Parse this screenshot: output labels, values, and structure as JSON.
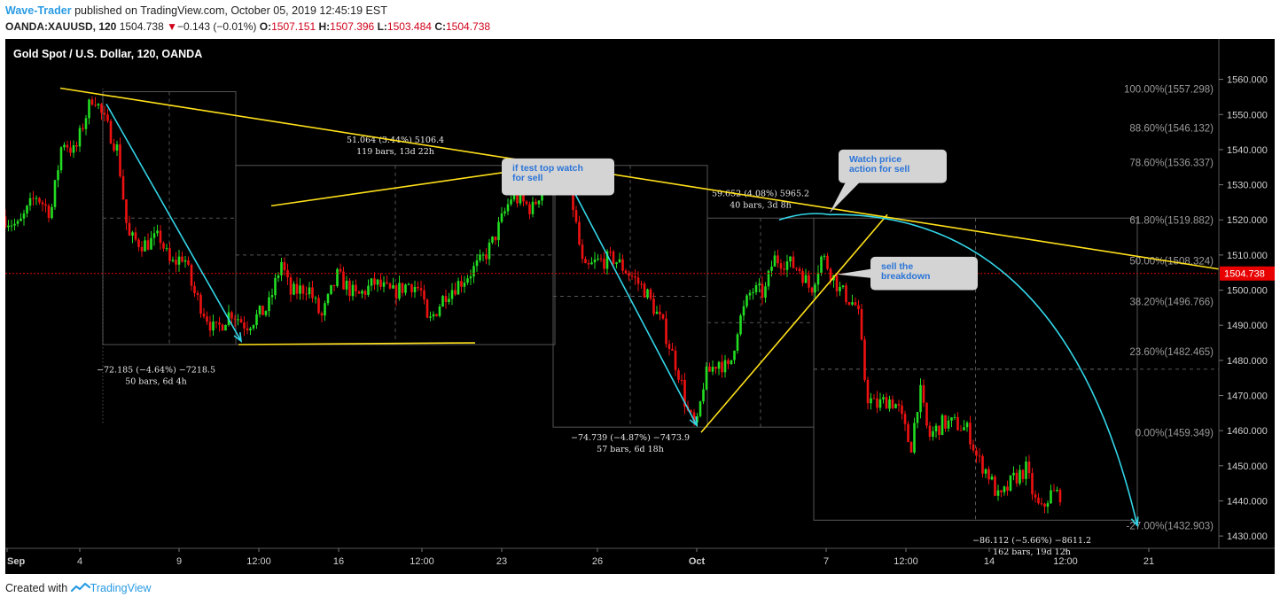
{
  "header": {
    "author": "Wave-Trader",
    "published_text": "published on TradingView.com, October 05, 2019 12:45:19 EST",
    "symbol": "OANDA:XAUUSD, 120",
    "last": "1504.738",
    "change_arrow": "▼",
    "change": "−0.143 (−0.01%)",
    "open_label": "O:",
    "open": "1507.151",
    "high_label": "H:",
    "high": "1507.396",
    "low_label": "L:",
    "low": "1503.484",
    "close_label": "C:",
    "close": "1504.738"
  },
  "footer": {
    "created_with": "Created with",
    "brand": "TradingView",
    "logo_icon": "tradingview-logo-icon"
  },
  "colors": {
    "background": "#000000",
    "up": "#22dd22",
    "down": "#ee1111",
    "trendline": "#ffe01a",
    "wave": "#33d6e8",
    "callout_bg": "#d4d4d4",
    "callout_text": "#2a74d8",
    "current_price": "#e80000",
    "fib": "#9a9a9a"
  },
  "chart_data": {
    "type": "candlestick",
    "title": "Gold Spot / U.S. Dollar, 120, OANDA",
    "y_axis": {
      "ticks": [
        1430,
        1440,
        1450,
        1460,
        1470,
        1480,
        1490,
        1500,
        1510,
        1520,
        1530,
        1540,
        1550,
        1560
      ],
      "tick_labels": [
        "1430.000",
        "1440.000",
        "1450.000",
        "1460.000",
        "1470.000",
        "1480.000",
        "1490.000",
        "1500.000",
        "1510.000",
        "1520.000",
        "1530.000",
        "1540.000",
        "1550.000",
        "1560.000"
      ],
      "range": [
        1426.5,
        1571.5
      ]
    },
    "x_axis": {
      "labels": [
        {
          "text": "Sep",
          "bar": 2,
          "bold": true
        },
        {
          "text": "4",
          "bar": 84
        },
        {
          "text": "9",
          "bar": 196
        },
        {
          "text": "12:00",
          "bar": 286
        },
        {
          "text": "16",
          "bar": 376
        },
        {
          "text": "12:00",
          "bar": 470
        },
        {
          "text": "23",
          "bar": 560
        },
        {
          "text": "26",
          "bar": 668
        },
        {
          "text": "Oct",
          "bar": 780,
          "bold": true
        },
        {
          "text": "7",
          "bar": 926
        },
        {
          "text": "12:00",
          "bar": 1016
        },
        {
          "text": "14",
          "bar": 1110
        },
        {
          "text": "12:00",
          "bar": 1196
        },
        {
          "text": "21",
          "bar": 1290
        }
      ],
      "range": [
        0,
        1369
      ]
    },
    "current_price": {
      "value": 1504.738,
      "label": "1504.738"
    },
    "waypoints": [
      {
        "bar": 0,
        "price": 1521
      },
      {
        "bar": 18,
        "price": 1518
      },
      {
        "bar": 38,
        "price": 1527
      },
      {
        "bar": 55,
        "price": 1522
      },
      {
        "bar": 68,
        "price": 1543
      },
      {
        "bar": 82,
        "price": 1539
      },
      {
        "bar": 92,
        "price": 1548
      },
      {
        "bar": 103,
        "price": 1556
      },
      {
        "bar": 112,
        "price": 1550
      },
      {
        "bar": 130,
        "price": 1540
      },
      {
        "bar": 142,
        "price": 1515
      },
      {
        "bar": 160,
        "price": 1513
      },
      {
        "bar": 178,
        "price": 1515
      },
      {
        "bar": 190,
        "price": 1507
      },
      {
        "bar": 205,
        "price": 1510
      },
      {
        "bar": 215,
        "price": 1500
      },
      {
        "bar": 240,
        "price": 1488
      },
      {
        "bar": 258,
        "price": 1494
      },
      {
        "bar": 275,
        "price": 1490
      },
      {
        "bar": 300,
        "price": 1495
      },
      {
        "bar": 315,
        "price": 1508
      },
      {
        "bar": 325,
        "price": 1499
      },
      {
        "bar": 345,
        "price": 1501
      },
      {
        "bar": 360,
        "price": 1492
      },
      {
        "bar": 378,
        "price": 1504
      },
      {
        "bar": 400,
        "price": 1498
      },
      {
        "bar": 420,
        "price": 1502
      },
      {
        "bar": 440,
        "price": 1499
      },
      {
        "bar": 460,
        "price": 1502
      },
      {
        "bar": 472,
        "price": 1500
      },
      {
        "bar": 480,
        "price": 1490
      },
      {
        "bar": 500,
        "price": 1499
      },
      {
        "bar": 520,
        "price": 1503
      },
      {
        "bar": 540,
        "price": 1508
      },
      {
        "bar": 552,
        "price": 1513
      },
      {
        "bar": 575,
        "price": 1527
      },
      {
        "bar": 598,
        "price": 1523
      },
      {
        "bar": 614,
        "price": 1532
      },
      {
        "bar": 622,
        "price": 1535
      },
      {
        "bar": 640,
        "price": 1530
      },
      {
        "bar": 656,
        "price": 1505
      },
      {
        "bar": 670,
        "price": 1508
      },
      {
        "bar": 690,
        "price": 1509
      },
      {
        "bar": 710,
        "price": 1504
      },
      {
        "bar": 725,
        "price": 1500
      },
      {
        "bar": 745,
        "price": 1490
      },
      {
        "bar": 765,
        "price": 1475
      },
      {
        "bar": 772,
        "price": 1466
      },
      {
        "bar": 783,
        "price": 1460
      },
      {
        "bar": 792,
        "price": 1475
      },
      {
        "bar": 808,
        "price": 1480
      },
      {
        "bar": 820,
        "price": 1477
      },
      {
        "bar": 830,
        "price": 1490
      },
      {
        "bar": 845,
        "price": 1500
      },
      {
        "bar": 860,
        "price": 1499
      },
      {
        "bar": 870,
        "price": 1509
      },
      {
        "bar": 885,
        "price": 1508
      },
      {
        "bar": 900,
        "price": 1506
      },
      {
        "bar": 912,
        "price": 1500
      },
      {
        "bar": 925,
        "price": 1510
      },
      {
        "bar": 945,
        "price": 1500
      },
      {
        "bar": 965,
        "price": 1495
      },
      {
        "bar": 975,
        "price": 1470
      },
      {
        "bar": 985,
        "price": 1467
      },
      {
        "bar": 1000,
        "price": 1469
      },
      {
        "bar": 1010,
        "price": 1467
      },
      {
        "bar": 1025,
        "price": 1455
      },
      {
        "bar": 1035,
        "price": 1472
      },
      {
        "bar": 1045,
        "price": 1458
      },
      {
        "bar": 1060,
        "price": 1462
      },
      {
        "bar": 1075,
        "price": 1462
      },
      {
        "bar": 1090,
        "price": 1460
      },
      {
        "bar": 1100,
        "price": 1452
      },
      {
        "bar": 1112,
        "price": 1448
      },
      {
        "bar": 1125,
        "price": 1440
      },
      {
        "bar": 1140,
        "price": 1446
      },
      {
        "bar": 1155,
        "price": 1449
      },
      {
        "bar": 1165,
        "price": 1440
      },
      {
        "bar": 1172,
        "price": 1437
      },
      {
        "bar": 1182,
        "price": 1442
      },
      {
        "bar": 1190,
        "price": 1442
      }
    ],
    "fib_levels": [
      {
        "label": "100.00%(1557.298)",
        "price": 1557.298
      },
      {
        "label": "88.60%(1546.132)",
        "price": 1546.132
      },
      {
        "label": "78.60%(1536.337)",
        "price": 1536.337
      },
      {
        "label": "61.80%(1519.882)",
        "price": 1519.882
      },
      {
        "label": "50.00%(1508.324)",
        "price": 1508.324
      },
      {
        "label": "38.20%(1496.766)",
        "price": 1496.766
      },
      {
        "label": "23.60%(1482.465)",
        "price": 1482.465
      },
      {
        "label": "0.00%(1459.349)",
        "price": 1459.349
      },
      {
        "label": "-27.00%(1432.903)",
        "price": 1432.903
      }
    ],
    "trendlines": [
      {
        "name": "descending-resistance",
        "from": {
          "bar": 62,
          "price": 1557.5
        },
        "to": {
          "bar": 1369,
          "price": 1506
        }
      },
      {
        "name": "range-top",
        "from": {
          "bar": 300,
          "price": 1524
        },
        "to": {
          "bar": 645,
          "price": 1536.5
        }
      },
      {
        "name": "range-bottom",
        "from": {
          "bar": 263,
          "price": 1484.5
        },
        "to": {
          "bar": 530,
          "price": 1485
        }
      },
      {
        "name": "rising-support",
        "from": {
          "bar": 785,
          "price": 1459.5
        },
        "to": {
          "bar": 995,
          "price": 1521.5
        }
      }
    ],
    "wave_lines": [
      {
        "name": "drop-1",
        "from": {
          "bar": 114,
          "price": 1553
        },
        "to": {
          "bar": 266,
          "price": 1485.5
        }
      },
      {
        "name": "drop-2",
        "from": {
          "bar": 628,
          "price": 1534.5
        },
        "to": {
          "bar": 780,
          "price": 1461.5
        }
      },
      {
        "name": "projected-arc",
        "start": {
          "bar": 873,
          "price": 1520
        },
        "peak": {
          "bar": 930,
          "price": 1521.5
        },
        "end": {
          "bar": 1277,
          "price": 1433
        }
      }
    ],
    "measurements": [
      {
        "line1": "−72.185 (−4.64%) −7218.5",
        "line2": "50 bars, 6d 4h",
        "box": {
          "bar0": 110,
          "bar1": 260,
          "p0": 1484.5,
          "p1": 1556.5
        },
        "label_at": {
          "bar": 170,
          "price": 1476.5
        }
      },
      {
        "line1": "51.064 (3.44%) 5106.4",
        "line2": "119 bars, 13d 22h",
        "box": {
          "bar0": 260,
          "bar1": 620,
          "p0": 1484.5,
          "p1": 1535.5
        },
        "label_at": {
          "bar": 440,
          "price": 1542
        }
      },
      {
        "line1": "−74.739 (−4.87%) −7473.9",
        "line2": "57 bars, 6d 18h",
        "box": {
          "bar0": 618,
          "bar1": 792,
          "p0": 1461,
          "p1": 1535.5
        },
        "label_at": {
          "bar": 705,
          "price": 1457.3
        }
      },
      {
        "line1": "59.652 (4.08%) 5965.2",
        "line2": "40 bars, 3d 8h",
        "box": {
          "bar0": 792,
          "bar1": 912,
          "p0": 1461,
          "p1": 1520.5
        },
        "label_at": {
          "bar": 852,
          "price": 1526.7
        }
      },
      {
        "line1": "−86.112 (−5.66%) −8611.2",
        "line2": "162 bars, 19d 12h",
        "box": {
          "bar0": 912,
          "bar1": 1277,
          "p0": 1434.5,
          "p1": 1520.5
        },
        "label_at": {
          "bar": 1158,
          "price": 1428
        }
      }
    ],
    "callouts": [
      {
        "text_lines": [
          "if test top watch",
          "for sell"
        ],
        "box": {
          "bar0": 560,
          "bar1": 687,
          "p0": 1527,
          "p1": 1537.5
        },
        "pointer": {
          "bar": 626,
          "price": 1536.5
        }
      },
      {
        "text_lines": [
          "Watch price",
          "action for sell"
        ],
        "box": {
          "bar0": 940,
          "bar1": 1062,
          "p0": 1530.5,
          "p1": 1540
        },
        "pointer": {
          "bar": 930,
          "price": 1522
        }
      },
      {
        "text_lines": [
          "sell the",
          "breakdown"
        ],
        "box": {
          "bar0": 976,
          "bar1": 1097,
          "p0": 1500,
          "p1": 1509.5
        },
        "pointer": {
          "bar": 938,
          "price": 1504.5
        }
      }
    ]
  }
}
